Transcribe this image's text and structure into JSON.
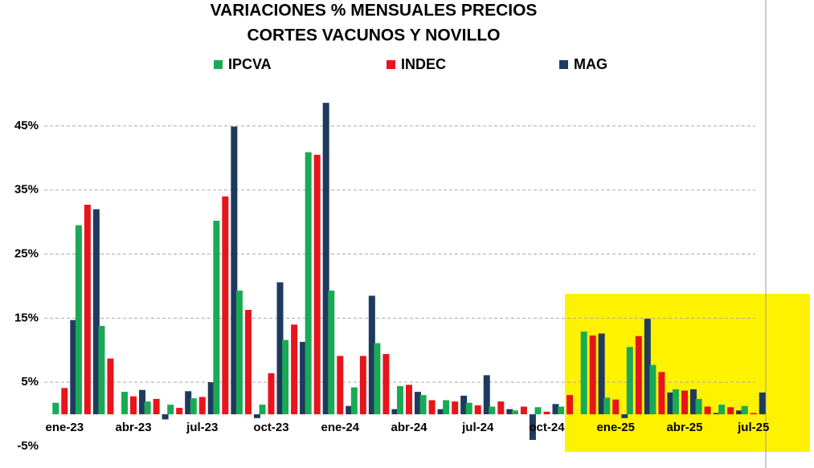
{
  "chart_data": {
    "type": "bar",
    "title": "VARIACIONES  % MENSUALES  PRECIOS",
    "subtitle": "CORTES VACUNOS Y NOVILLO",
    "categories": [
      "ene-23",
      null,
      null,
      "abr-23",
      null,
      null,
      "jul-23",
      null,
      null,
      "oct-23",
      null,
      null,
      "ene-24",
      null,
      null,
      "abr-24",
      null,
      null,
      "jul-24",
      null,
      null,
      "oct-24",
      null,
      null,
      "ene-25",
      null,
      null,
      "abr-25",
      null,
      null,
      "jul-25"
    ],
    "series": [
      {
        "name": "IPCVA",
        "color": "#1aaa55",
        "values": [
          1.8,
          29.5,
          13.8,
          3.5,
          2.0,
          1.5,
          2.5,
          30.2,
          19.3,
          1.5,
          11.6,
          40.9,
          19.3,
          4.2,
          11.1,
          4.4,
          3.0,
          2.2,
          1.8,
          1.2,
          0.6,
          1.1,
          1.2,
          12.9,
          2.6,
          10.5,
          7.7,
          3.9,
          2.4,
          1.5,
          1.3
        ]
      },
      {
        "name": "INDEC",
        "color": "#e8141b",
        "values": [
          4.1,
          32.7,
          8.7,
          2.8,
          2.4,
          1.0,
          2.7,
          34.0,
          16.3,
          6.4,
          14.0,
          40.5,
          9.1,
          9.1,
          9.4,
          4.6,
          2.2,
          2.0,
          1.4,
          2.0,
          1.2,
          0.4,
          3.0,
          12.3,
          2.3,
          12.2,
          6.6,
          3.7,
          1.2,
          1.1,
          0.2
        ]
      },
      {
        "name": "MAG",
        "color": "#1f3a5f",
        "values": [
          14.7,
          32.0,
          null,
          3.8,
          -0.8,
          3.6,
          5.0,
          44.9,
          -0.6,
          20.6,
          11.3,
          48.6,
          1.3,
          18.5,
          0.8,
          3.5,
          0.8,
          2.9,
          6.1,
          0.8,
          -4.0,
          1.6,
          null,
          12.6,
          -0.6,
          14.9,
          3.4,
          3.9,
          0.2,
          0.6,
          3.4
        ]
      }
    ],
    "ylim": [
      -5,
      53
    ],
    "yticks": [
      {
        "value": -5,
        "label": "-5%"
      },
      {
        "value": 5,
        "label": "5%"
      },
      {
        "value": 15,
        "label": "15%"
      },
      {
        "value": 25,
        "label": "25%"
      },
      {
        "value": 35,
        "label": "35%"
      },
      {
        "value": 45,
        "label": "45%"
      }
    ],
    "grid": true
  }
}
